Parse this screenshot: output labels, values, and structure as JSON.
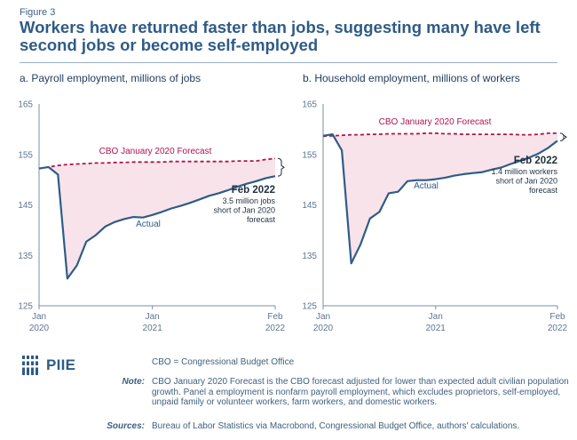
{
  "figure_label": "Figure 3",
  "title": "Workers have returned faster than jobs, suggesting many have left second jobs or become self-employed",
  "colors": {
    "actual": "#2e5c88",
    "forecast": "#b0124f",
    "fill": "#f8e3ea",
    "axis": "#7a8fa3"
  },
  "chart_data": [
    {
      "type": "line",
      "title": "a. Payroll employment, millions of jobs",
      "ylim": [
        125,
        165
      ],
      "yticks": [
        "165",
        "155",
        "145",
        "135",
        "125"
      ],
      "x_tick_labels": [
        [
          "Jan",
          "2020"
        ],
        [
          "Jan",
          "2021"
        ],
        [
          "Feb",
          "2022"
        ]
      ],
      "x_tick_months": [
        0,
        12,
        25
      ],
      "series": [
        {
          "name": "Actual",
          "x": [
            0,
            1,
            2,
            3,
            4,
            5,
            6,
            7,
            8,
            9,
            10,
            11,
            12,
            13,
            14,
            15,
            16,
            17,
            18,
            19,
            20,
            21,
            22,
            23,
            24,
            25
          ],
          "values": [
            152.2,
            152.5,
            151.0,
            130.4,
            133.0,
            137.7,
            139.0,
            140.7,
            141.6,
            142.2,
            142.6,
            142.5,
            143.0,
            143.6,
            144.3,
            144.8,
            145.4,
            146.1,
            146.8,
            147.3,
            147.9,
            148.6,
            149.2,
            149.7,
            150.3,
            150.7
          ]
        },
        {
          "name": "CBO January 2020 Forecast",
          "x": [
            0,
            1,
            2,
            3,
            4,
            5,
            6,
            7,
            8,
            9,
            10,
            11,
            12,
            13,
            14,
            15,
            16,
            17,
            18,
            19,
            20,
            21,
            22,
            23,
            24,
            25
          ],
          "values": [
            152.2,
            152.5,
            152.8,
            153.0,
            153.1,
            153.2,
            153.3,
            153.3,
            153.4,
            153.4,
            153.5,
            153.5,
            153.5,
            153.5,
            153.6,
            153.6,
            153.6,
            153.6,
            153.6,
            153.6,
            153.6,
            153.7,
            153.7,
            153.7,
            154.0,
            154.2
          ]
        }
      ],
      "annotation": {
        "date": "Feb 2022",
        "lines": [
          "3.5 million jobs",
          "short of Jan 2020",
          "forecast"
        ]
      }
    },
    {
      "type": "line",
      "title": "b. Household employment, millions of workers",
      "ylim": [
        125,
        165
      ],
      "yticks": [
        "165",
        "155",
        "145",
        "135",
        "125"
      ],
      "x_tick_labels": [
        [
          "Jan",
          "2020"
        ],
        [
          "Jan",
          "2021"
        ],
        [
          "Feb",
          "2022"
        ]
      ],
      "x_tick_months": [
        0,
        12,
        25
      ],
      "series": [
        {
          "name": "Actual",
          "x": [
            0,
            1,
            2,
            3,
            4,
            5,
            6,
            7,
            8,
            9,
            10,
            11,
            12,
            13,
            14,
            15,
            16,
            17,
            18,
            19,
            20,
            21,
            22,
            23,
            24,
            25
          ],
          "values": [
            158.7,
            159.0,
            155.8,
            133.4,
            137.2,
            142.3,
            143.6,
            147.3,
            147.6,
            149.7,
            149.9,
            149.9,
            150.1,
            150.4,
            150.8,
            151.1,
            151.3,
            151.5,
            152.0,
            152.4,
            153.1,
            153.7,
            154.4,
            155.2,
            156.3,
            157.7
          ]
        },
        {
          "name": "CBO January 2020 Forecast",
          "x": [
            0,
            1,
            2,
            3,
            4,
            5,
            6,
            7,
            8,
            9,
            10,
            11,
            12,
            13,
            14,
            15,
            16,
            17,
            18,
            19,
            20,
            21,
            22,
            23,
            24,
            25
          ],
          "values": [
            158.6,
            158.7,
            158.8,
            158.9,
            158.9,
            159.0,
            159.0,
            159.1,
            159.1,
            159.1,
            159.1,
            159.2,
            159.2,
            159.1,
            159.1,
            159.0,
            159.0,
            159.0,
            159.0,
            159.0,
            159.0,
            158.9,
            158.9,
            159.0,
            159.2,
            159.2
          ]
        }
      ],
      "annotation": {
        "date": "Feb 2022",
        "lines": [
          "1.4 million workers",
          "short of Jan 2020",
          "forecast"
        ]
      }
    }
  ],
  "footer": {
    "logo_text": "PIIE",
    "abbrev": "CBO = Congressional Budget Office",
    "note_key": "Note:",
    "note_text": "CBO January 2020 Forecast is the CBO forecast adjusted for lower than expected adult civilian population growth. Panel a employment is nonfarm payroll employment, which excludes proprietors, self-employed, unpaid family or volunteer workers, farm workers, and domestic workers.",
    "sources_key": "Sources:",
    "sources_text": "Bureau of Labor Statistics via Macrobond, Congressional Budget Office, authors' calculations."
  }
}
